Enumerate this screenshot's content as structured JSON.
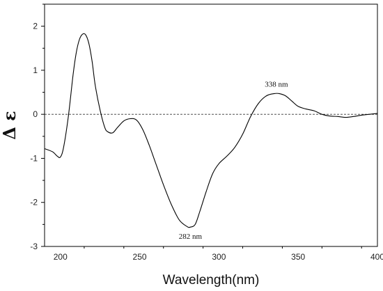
{
  "chart_data": {
    "type": "line",
    "xlabel": "Wavelength(nm)",
    "ylabel": "Δ ε",
    "xlim": [
      190,
      400
    ],
    "ylim": [
      -3,
      2.5
    ],
    "xticks": [
      200,
      250,
      300,
      350,
      400
    ],
    "yticks": [
      -3,
      -2,
      -1,
      0,
      1,
      2
    ],
    "grid": false,
    "zero_line": "dashed",
    "series": [
      {
        "color": "#000000",
        "x": [
          190,
          195,
          198,
          200,
          202,
          205,
          208,
          210,
          212,
          214,
          216,
          218,
          220,
          222,
          225,
          228,
          230,
          233,
          236,
          240,
          244,
          248,
          252,
          256,
          260,
          265,
          270,
          275,
          280,
          282,
          285,
          288,
          292,
          296,
          300,
          305,
          310,
          315,
          320,
          325,
          330,
          335,
          338,
          342,
          346,
          350,
          355,
          360,
          365,
          370,
          375,
          380,
          385,
          390,
          395,
          400
        ],
        "y": [
          -0.78,
          -0.85,
          -0.95,
          -0.97,
          -0.75,
          -0.05,
          0.9,
          1.4,
          1.7,
          1.82,
          1.8,
          1.6,
          1.2,
          0.65,
          0.1,
          -0.3,
          -0.4,
          -0.42,
          -0.3,
          -0.15,
          -0.1,
          -0.13,
          -0.35,
          -0.7,
          -1.1,
          -1.6,
          -2.05,
          -2.4,
          -2.55,
          -2.56,
          -2.5,
          -2.2,
          -1.75,
          -1.35,
          -1.12,
          -0.95,
          -0.75,
          -0.45,
          -0.05,
          0.25,
          0.42,
          0.47,
          0.47,
          0.42,
          0.3,
          0.18,
          0.12,
          0.08,
          0.0,
          -0.04,
          -0.05,
          -0.07,
          -0.05,
          -0.02,
          0.0,
          0.02
        ]
      }
    ],
    "annotations": [
      {
        "text": "338 nm",
        "x": 338,
        "y": 0.47
      },
      {
        "text": "282 nm",
        "x": 282,
        "y": -2.56
      }
    ]
  }
}
